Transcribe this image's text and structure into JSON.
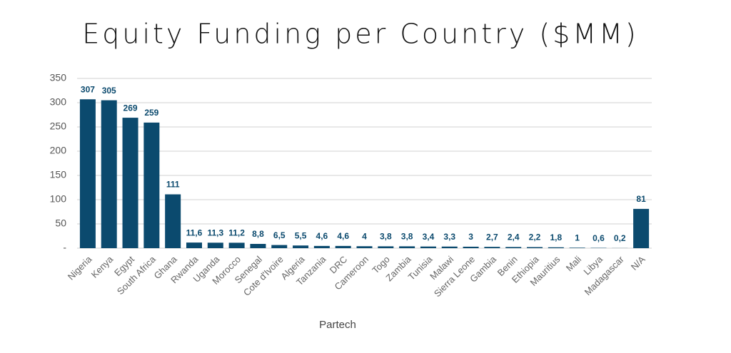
{
  "chart_data": {
    "type": "bar",
    "title": "Equity Funding per Country ($MM)",
    "source": "Partech",
    "categories": [
      "Nigeria",
      "Kenya",
      "Egypt",
      "South Africa",
      "Ghana",
      "Rwanda",
      "Uganda",
      "Morocco",
      "Senegal",
      "Cote d'Ivoire",
      "Algeria",
      "Tanzania",
      "DRC",
      "Cameroon",
      "Togo",
      "Zambia",
      "Tunisia",
      "Malawi",
      "Sierra Leone",
      "Gambia",
      "Benin",
      "Ethiopia",
      "Mauritius",
      "Mali",
      "Libya",
      "Madagascar",
      "N/A"
    ],
    "values": [
      307,
      305,
      269,
      259,
      111,
      11.6,
      11.3,
      11.2,
      8.8,
      6.5,
      5.5,
      4.6,
      4.6,
      4,
      3.8,
      3.8,
      3.4,
      3.3,
      3,
      2.7,
      2.4,
      2.2,
      1.8,
      1,
      0.6,
      0.2,
      81
    ],
    "value_labels": [
      "307",
      "305",
      "269",
      "259",
      "111",
      "11,6",
      "11,3",
      "11,2",
      "8,8",
      "6,5",
      "5,5",
      "4,6",
      "4,6",
      "4",
      "3,8",
      "3,8",
      "3,4",
      "3,3",
      "3",
      "2,7",
      "2,4",
      "2,2",
      "1,8",
      "1",
      "0,6",
      "0,2",
      "81"
    ],
    "color": "#0b4a6e",
    "ylim": [
      0,
      350
    ],
    "yticks": [
      {
        "value": 0,
        "label": "-"
      },
      50,
      100,
      150,
      200,
      250,
      300,
      350
    ],
    "grid": true
  }
}
